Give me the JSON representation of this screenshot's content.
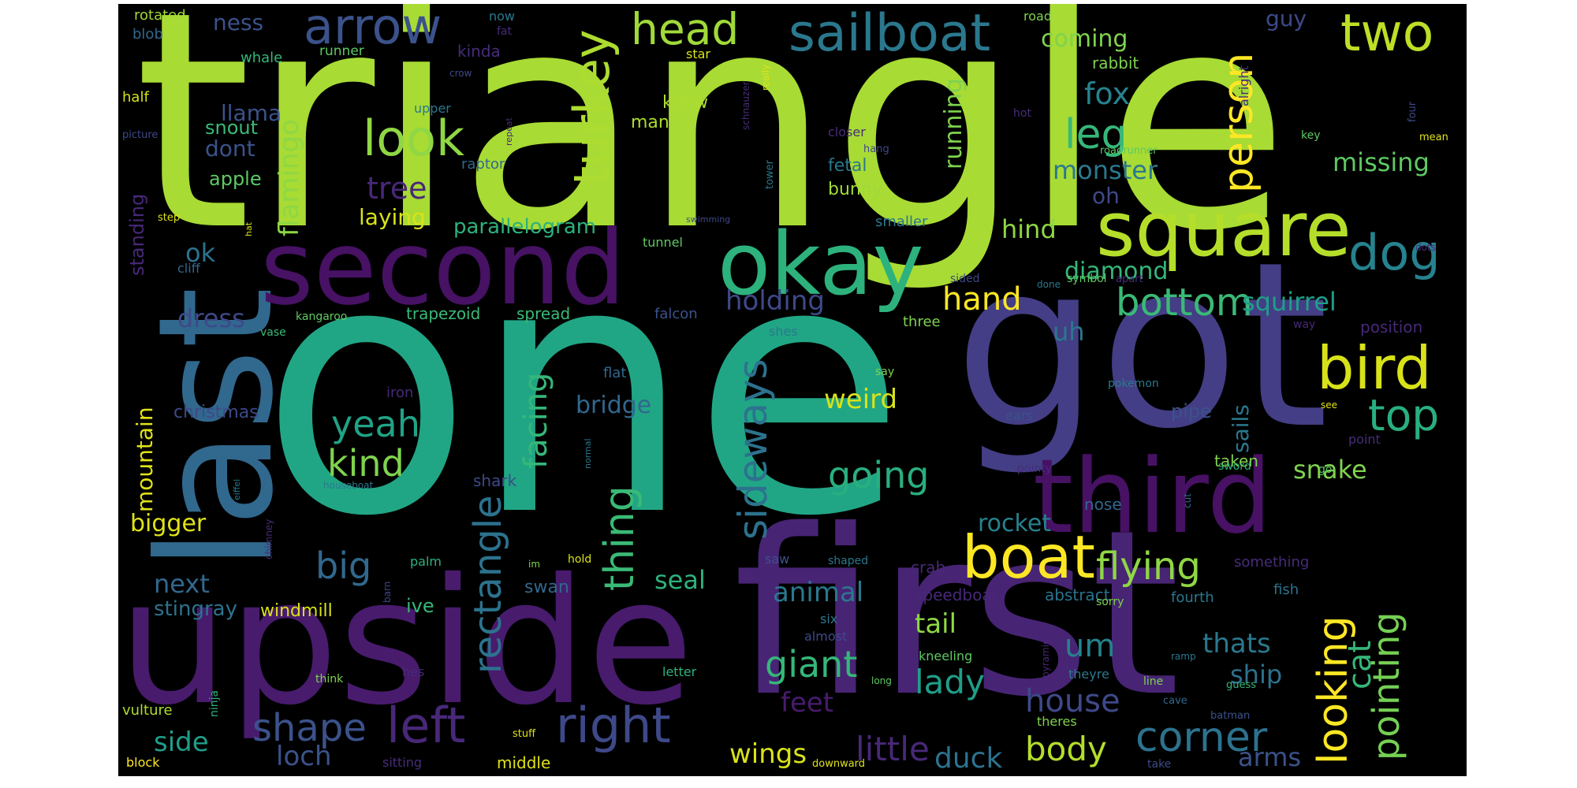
{
  "palette": [
    "#440154",
    "#482878",
    "#3e4989",
    "#31688e",
    "#26828e",
    "#1f9e89",
    "#35b779",
    "#6ece58",
    "#b5de2b",
    "#fde725"
  ],
  "words": [
    {
      "text": "triangle",
      "color": "#a8db34",
      "weight": 1.0
    },
    {
      "text": "one",
      "color": "#21a685",
      "weight": 0.98
    },
    {
      "text": "got",
      "color": "#433e85",
      "weight": 0.82
    },
    {
      "text": "first",
      "color": "#482475",
      "weight": 0.82
    },
    {
      "text": "upside",
      "color": "#481b6d",
      "weight": 0.62
    },
    {
      "text": "last",
      "color": "#31688e",
      "weight": 0.55
    },
    {
      "text": "second",
      "color": "#471164",
      "weight": 0.4
    },
    {
      "text": "third",
      "color": "#471164",
      "weight": 0.4
    },
    {
      "text": "square",
      "color": "#b5de2b",
      "weight": 0.38
    },
    {
      "text": "okay",
      "color": "#2db27d",
      "weight": 0.38
    },
    {
      "text": "boat",
      "color": "#fde725",
      "weight": 0.28
    },
    {
      "text": "sailboat",
      "color": "#2a788e",
      "weight": 0.24
    },
    {
      "text": "bird",
      "color": "#d8e219",
      "weight": 0.26
    },
    {
      "text": "arrow",
      "color": "#3b528b",
      "weight": 0.22
    },
    {
      "text": "head",
      "color": "#a0da39",
      "weight": 0.2
    },
    {
      "text": "two",
      "color": "#bddf26",
      "weight": 0.24
    },
    {
      "text": "look",
      "color": "#8fd744",
      "weight": 0.2
    },
    {
      "text": "turkey",
      "color": "#addc30",
      "weight": 0.2
    },
    {
      "text": "dog",
      "color": "#26828e",
      "weight": 0.22
    },
    {
      "text": "right",
      "color": "#3e4989",
      "weight": 0.22
    },
    {
      "text": "left",
      "color": "#482878",
      "weight": 0.22
    },
    {
      "text": "top",
      "color": "#29af7f",
      "weight": 0.22
    },
    {
      "text": "person",
      "color": "#fde725",
      "weight": 0.18
    },
    {
      "text": "leg",
      "color": "#35b779",
      "weight": 0.18
    },
    {
      "text": "looking",
      "color": "#fde725",
      "weight": 0.18
    },
    {
      "text": "thing",
      "color": "#3aba76",
      "weight": 0.18
    },
    {
      "text": "sideways",
      "color": "#2c728e",
      "weight": 0.16
    },
    {
      "text": "rectangle",
      "color": "#2c728e",
      "weight": 0.16
    },
    {
      "text": "flying",
      "color": "#8fd744",
      "weight": 0.16
    },
    {
      "text": "corner",
      "color": "#2c728e",
      "weight": 0.18
    },
    {
      "text": "shape",
      "color": "#3b528b",
      "weight": 0.16
    },
    {
      "text": "pointing",
      "color": "#75d054",
      "weight": 0.16
    },
    {
      "text": "bottom",
      "color": "#3aba76",
      "weight": 0.16
    },
    {
      "text": "giant",
      "color": "#35b779",
      "weight": 0.14
    },
    {
      "text": "kind",
      "color": "#7fd34e",
      "weight": 0.14
    },
    {
      "text": "yeah",
      "color": "#20a386",
      "weight": 0.14
    },
    {
      "text": "going",
      "color": "#29af7f",
      "weight": 0.14
    },
    {
      "text": "big",
      "color": "#31688e",
      "weight": 0.14
    },
    {
      "text": "body",
      "color": "#b5de2b",
      "weight": 0.12
    },
    {
      "text": "house",
      "color": "#3e4989",
      "weight": 0.12
    },
    {
      "text": "lady",
      "color": "#1f9e89",
      "weight": 0.12
    },
    {
      "text": "little",
      "color": "#482878",
      "weight": 0.12
    },
    {
      "text": "um",
      "color": "#26828e",
      "weight": 0.12
    },
    {
      "text": "cat",
      "color": "#35b779",
      "weight": 0.12
    },
    {
      "text": "snake",
      "color": "#7fd34e",
      "weight": 0.1
    },
    {
      "text": "wings",
      "color": "#d8e219",
      "weight": 0.1
    },
    {
      "text": "duck",
      "color": "#2c728e",
      "weight": 0.1
    },
    {
      "text": "arms",
      "color": "#3b528b",
      "weight": 0.1
    },
    {
      "text": "loch",
      "color": "#3b528b",
      "weight": 0.1
    },
    {
      "text": "side",
      "color": "#1f9e89",
      "weight": 0.1
    },
    {
      "text": "feet",
      "color": "#481b6d",
      "weight": 0.1
    },
    {
      "text": "ship",
      "color": "#2c728e",
      "weight": 0.1
    },
    {
      "text": "thats",
      "color": "#2a788e",
      "weight": 0.1
    },
    {
      "text": "tail",
      "color": "#8fd744",
      "weight": 0.1
    },
    {
      "text": "animal",
      "color": "#2a788e",
      "weight": 0.1
    },
    {
      "text": "seal",
      "color": "#2db27d",
      "weight": 0.1
    },
    {
      "text": "next",
      "color": "#31688e",
      "weight": 0.1
    },
    {
      "text": "bigger",
      "color": "#dfe318",
      "weight": 0.08
    },
    {
      "text": "rocket",
      "color": "#26828e",
      "weight": 0.08
    },
    {
      "text": "weird",
      "color": "#d8e219",
      "weight": 0.1
    },
    {
      "text": "bridge",
      "color": "#31688e",
      "weight": 0.08
    },
    {
      "text": "hand",
      "color": "#fde725",
      "weight": 0.12
    },
    {
      "text": "dress",
      "color": "#3e4989",
      "weight": 0.1
    },
    {
      "text": "holding",
      "color": "#3e4989",
      "weight": 0.1
    },
    {
      "text": "squirrel",
      "color": "#1f9e89",
      "weight": 0.1
    },
    {
      "text": "diamond",
      "color": "#35b779",
      "weight": 0.1
    },
    {
      "text": "uh",
      "color": "#2a788e",
      "weight": 0.1
    },
    {
      "text": "hind",
      "color": "#8fd744",
      "weight": 0.1
    },
    {
      "text": "monster",
      "color": "#2a788e",
      "weight": 0.1
    },
    {
      "text": "oh",
      "color": "#3e4989",
      "weight": 0.08
    },
    {
      "text": "missing",
      "color": "#5ec962",
      "weight": 0.1
    },
    {
      "text": "guy",
      "color": "#3e4989",
      "weight": 0.08
    },
    {
      "text": "coming",
      "color": "#7fd34e",
      "weight": 0.08
    },
    {
      "text": "fox",
      "color": "#26828e",
      "weight": 0.12
    },
    {
      "text": "running",
      "color": "#7fd34e",
      "weight": 0.08
    },
    {
      "text": "ness",
      "color": "#3b528b",
      "weight": 0.08
    },
    {
      "text": "flamingo",
      "color": "#8fd744",
      "weight": 0.1
    },
    {
      "text": "tree",
      "color": "#482878",
      "weight": 0.1
    },
    {
      "text": "laying",
      "color": "#d8e219",
      "weight": 0.08
    },
    {
      "text": "parallelogram",
      "color": "#2db27d",
      "weight": 0.07
    },
    {
      "text": "dont",
      "color": "#3b528b",
      "weight": 0.08
    },
    {
      "text": "llama",
      "color": "#3b528b",
      "weight": 0.08
    },
    {
      "text": "snout",
      "color": "#3aba76",
      "weight": 0.07
    },
    {
      "text": "apple",
      "color": "#5ec962",
      "weight": 0.07
    },
    {
      "text": "standing",
      "color": "#482878",
      "weight": 0.07
    },
    {
      "text": "mountain",
      "color": "#dfe318",
      "weight": 0.07
    },
    {
      "text": "ok",
      "color": "#2c728e",
      "weight": 0.1
    },
    {
      "text": "christmas",
      "color": "#3e4989",
      "weight": 0.06
    },
    {
      "text": "stingray",
      "color": "#2c728e",
      "weight": 0.07
    },
    {
      "text": "windmill",
      "color": "#d8e219",
      "weight": 0.06
    },
    {
      "text": "swan",
      "color": "#31688e",
      "weight": 0.06
    },
    {
      "text": "ive",
      "color": "#35b779",
      "weight": 0.07
    },
    {
      "text": "facing",
      "color": "#35b779",
      "weight": 0.1
    },
    {
      "text": "sails",
      "color": "#2a788e",
      "weight": 0.08
    },
    {
      "text": "pipe",
      "color": "#3b528b",
      "weight": 0.07
    },
    {
      "text": "taken",
      "color": "#7fd34e",
      "weight": 0.06
    },
    {
      "text": "speedboat",
      "color": "#482878",
      "weight": 0.06
    },
    {
      "text": "abstract",
      "color": "#2c728e",
      "weight": 0.06
    },
    {
      "text": "fourth",
      "color": "#2a788e",
      "weight": 0.05
    },
    {
      "text": "fish",
      "color": "#2c728e",
      "weight": 0.05
    },
    {
      "text": "something",
      "color": "#472c7a",
      "weight": 0.05
    },
    {
      "text": "crab",
      "color": "#482878",
      "weight": 0.05
    },
    {
      "text": "shark",
      "color": "#3e4989",
      "weight": 0.05
    },
    {
      "text": "nose",
      "color": "#31688e",
      "weight": 0.05
    },
    {
      "text": "bunny",
      "color": "#a0da39",
      "weight": 0.06
    },
    {
      "text": "fetal",
      "color": "#2a788e",
      "weight": 0.06
    },
    {
      "text": "kinda",
      "color": "#472c7a",
      "weight": 0.05
    },
    {
      "text": "man",
      "color": "#addc30",
      "weight": 0.06
    },
    {
      "text": "know",
      "color": "#addc30",
      "weight": 0.06
    },
    {
      "text": "rabbit",
      "color": "#7fd34e",
      "weight": 0.05
    },
    {
      "text": "raptor",
      "color": "#31688e",
      "weight": 0.05
    },
    {
      "text": "smaller",
      "color": "#2a788e",
      "weight": 0.05
    },
    {
      "text": "falcon",
      "color": "#3b528b",
      "weight": 0.05
    },
    {
      "text": "spread",
      "color": "#3aba76",
      "weight": 0.06
    },
    {
      "text": "trapezoid",
      "color": "#3aba76",
      "weight": 0.06
    },
    {
      "text": "shes",
      "color": "#2a788e",
      "weight": 0.05
    },
    {
      "text": "three",
      "color": "#7fd34e",
      "weight": 0.05
    },
    {
      "text": "position",
      "color": "#482878",
      "weight": 0.06
    },
    {
      "text": "point",
      "color": "#472c7a",
      "weight": 0.04
    },
    {
      "text": "sword",
      "color": "#2db27d",
      "weight": 0.04
    },
    {
      "text": "go",
      "color": "#5ec962",
      "weight": 0.04
    },
    {
      "text": "ears",
      "color": "#3b528b",
      "weight": 0.04
    },
    {
      "text": "say",
      "color": "#7fd34e",
      "weight": 0.04
    },
    {
      "text": "pokemon",
      "color": "#2a788e",
      "weight": 0.04
    },
    {
      "text": "see",
      "color": "#dfe318",
      "weight": 0.03
    },
    {
      "text": "flat",
      "color": "#31688e",
      "weight": 0.05
    },
    {
      "text": "saw",
      "color": "#3b528b",
      "weight": 0.05
    },
    {
      "text": "palm",
      "color": "#2db27d",
      "weight": 0.04
    },
    {
      "text": "hold",
      "color": "#d8e219",
      "weight": 0.04
    },
    {
      "text": "shaped",
      "color": "#2a788e",
      "weight": 0.04
    },
    {
      "text": "six",
      "color": "#2a788e",
      "weight": 0.04
    },
    {
      "text": "almost",
      "color": "#3e4989",
      "weight": 0.04
    },
    {
      "text": "kneeling",
      "color": "#5ec962",
      "weight": 0.04
    },
    {
      "text": "theyre",
      "color": "#2a788e",
      "weight": 0.04
    },
    {
      "text": "line",
      "color": "#7fd34e",
      "weight": 0.04
    },
    {
      "text": "cave",
      "color": "#31688e",
      "weight": 0.03
    },
    {
      "text": "guess",
      "color": "#35b779",
      "weight": 0.03
    },
    {
      "text": "ramp",
      "color": "#2a788e",
      "weight": 0.03
    },
    {
      "text": "sorry",
      "color": "#7fd34e",
      "weight": 0.04
    },
    {
      "text": "batman",
      "color": "#3b528b",
      "weight": 0.03
    },
    {
      "text": "theres",
      "color": "#7fd34e",
      "weight": 0.04
    },
    {
      "text": "take",
      "color": "#3e4989",
      "weight": 0.04
    },
    {
      "text": "downward",
      "color": "#dfe318",
      "weight": 0.03
    },
    {
      "text": "long",
      "color": "#5ec962",
      "weight": 0.03
    },
    {
      "text": "letter",
      "color": "#2db27d",
      "weight": 0.04
    },
    {
      "text": "hes",
      "color": "#482878",
      "weight": 0.04
    },
    {
      "text": "think",
      "color": "#7fd34e",
      "weight": 0.04
    },
    {
      "text": "middle",
      "color": "#dfe318",
      "weight": 0.05
    },
    {
      "text": "sitting",
      "color": "#472c7a",
      "weight": 0.04
    },
    {
      "text": "stuff",
      "color": "#dfe318",
      "weight": 0.03
    },
    {
      "text": "vulture",
      "color": "#addc30",
      "weight": 0.05
    },
    {
      "text": "block",
      "color": "#fde725",
      "weight": 0.04
    },
    {
      "text": "ninja",
      "color": "#2db27d",
      "weight": 0.04
    },
    {
      "text": "barn",
      "color": "#3e4989",
      "weight": 0.03
    },
    {
      "text": "chimney",
      "color": "#472c7a",
      "weight": 0.03
    },
    {
      "text": "eiffel",
      "color": "#2a788e",
      "weight": 0.02
    },
    {
      "text": "houseboat",
      "color": "#2a788e",
      "weight": 0.03
    },
    {
      "text": "im",
      "color": "#7fd34e",
      "weight": 0.03
    },
    {
      "text": "vase",
      "color": "#3aba76",
      "weight": 0.03
    },
    {
      "text": "kangaroo",
      "color": "#5ec962",
      "weight": 0.03
    },
    {
      "text": "cliff",
      "color": "#31688e",
      "weight": 0.04
    },
    {
      "text": "hat",
      "color": "#d8e219",
      "weight": 0.02
    },
    {
      "text": "step",
      "color": "#dfe318",
      "weight": 0.03
    },
    {
      "text": "picture",
      "color": "#3e4989",
      "weight": 0.03
    },
    {
      "text": "half",
      "color": "#d8e219",
      "weight": 0.04
    },
    {
      "text": "whale",
      "color": "#35b779",
      "weight": 0.04
    },
    {
      "text": "blob",
      "color": "#31688e",
      "weight": 0.04
    },
    {
      "text": "rotated",
      "color": "#a0da39",
      "weight": 0.04
    },
    {
      "text": "runner",
      "color": "#5ec962",
      "weight": 0.04
    },
    {
      "text": "now",
      "color": "#2a788e",
      "weight": 0.04
    },
    {
      "text": "fat",
      "color": "#472c7a",
      "weight": 0.03
    },
    {
      "text": "crow",
      "color": "#3e4989",
      "weight": 0.03
    },
    {
      "text": "upper",
      "color": "#2a788e",
      "weight": 0.04
    },
    {
      "text": "repeat",
      "color": "#472c7a",
      "weight": 0.02
    },
    {
      "text": "star",
      "color": "#d8e219",
      "weight": 0.04
    },
    {
      "text": "really",
      "color": "#dfe318",
      "weight": 0.03
    },
    {
      "text": "schnauzer",
      "color": "#472c7a",
      "weight": 0.03
    },
    {
      "text": "closer",
      "color": "#472c7a",
      "weight": 0.04
    },
    {
      "text": "hang",
      "color": "#3e4989",
      "weight": 0.03
    },
    {
      "text": "tower",
      "color": "#2a788e",
      "weight": 0.03
    },
    {
      "text": "swimming",
      "color": "#3e4989",
      "weight": 0.02
    },
    {
      "text": "tunnel",
      "color": "#5ec962",
      "weight": 0.04
    },
    {
      "text": "road",
      "color": "#7fd34e",
      "weight": 0.04
    },
    {
      "text": "alright",
      "color": "#472c7a",
      "weight": 0.04
    },
    {
      "text": "roadrunner",
      "color": "#5ec962",
      "weight": 0.03
    },
    {
      "text": "hot",
      "color": "#472c7a",
      "weight": 0.03
    },
    {
      "text": "key",
      "color": "#5ec962",
      "weight": 0.03
    },
    {
      "text": "four",
      "color": "#3e4989",
      "weight": 0.03
    },
    {
      "text": "mean",
      "color": "#dfe318",
      "weight": 0.03
    },
    {
      "text": "dots",
      "color": "#472c7a",
      "weight": 0.02
    },
    {
      "text": "sided",
      "color": "#3e4989",
      "weight": 0.03
    },
    {
      "text": "done",
      "color": "#2a788e",
      "weight": 0.02
    },
    {
      "text": "symbol",
      "color": "#5ec962",
      "weight": 0.03
    },
    {
      "text": "apart",
      "color": "#472c7a",
      "weight": 0.03
    },
    {
      "text": "way",
      "color": "#482878",
      "weight": 0.03
    },
    {
      "text": "iron",
      "color": "#482878",
      "weight": 0.04
    },
    {
      "text": "normal",
      "color": "#2a788e",
      "weight": 0.02
    },
    {
      "text": "pointy",
      "color": "#472c7a",
      "weight": 0.03
    },
    {
      "text": "cut",
      "color": "#31688e",
      "weight": 0.03
    },
    {
      "text": "pyramid",
      "color": "#482878",
      "weight": 0.03
    }
  ]
}
